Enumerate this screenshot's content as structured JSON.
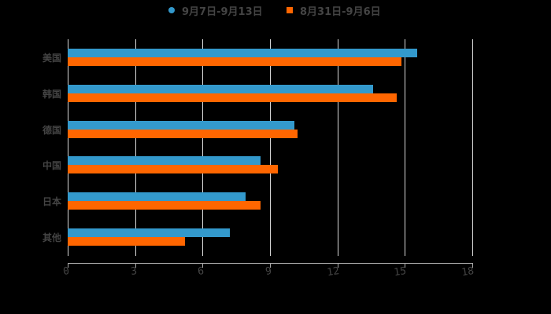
{
  "chart_data": {
    "type": "bar",
    "orientation": "horizontal",
    "title": "",
    "xlabel": "",
    "ylabel": "",
    "categories": [
      "美国",
      "韩国",
      "德国",
      "中国",
      "日本",
      "其他"
    ],
    "series": [
      {
        "name": "9月7日-9月13日",
        "color": "#3399CC",
        "marker": "circle",
        "values": [
          15.55,
          13.59,
          10.08,
          8.58,
          7.91,
          7.21
        ]
      },
      {
        "name": "8月31日-9月6日",
        "color": "#FF6600",
        "marker": "square",
        "values": [
          14.85,
          14.64,
          10.22,
          9.35,
          8.58,
          5.22
        ]
      }
    ],
    "xlim": [
      0,
      18
    ],
    "xticks": [
      "0",
      "3",
      "6",
      "9",
      "12",
      "15",
      "18"
    ],
    "grid": true,
    "legend_position": "top"
  },
  "colors": {
    "background": "#000000",
    "text": "#444444",
    "grid": "#d8d8d8",
    "series1": "#3399CC",
    "series2": "#FF6600"
  }
}
